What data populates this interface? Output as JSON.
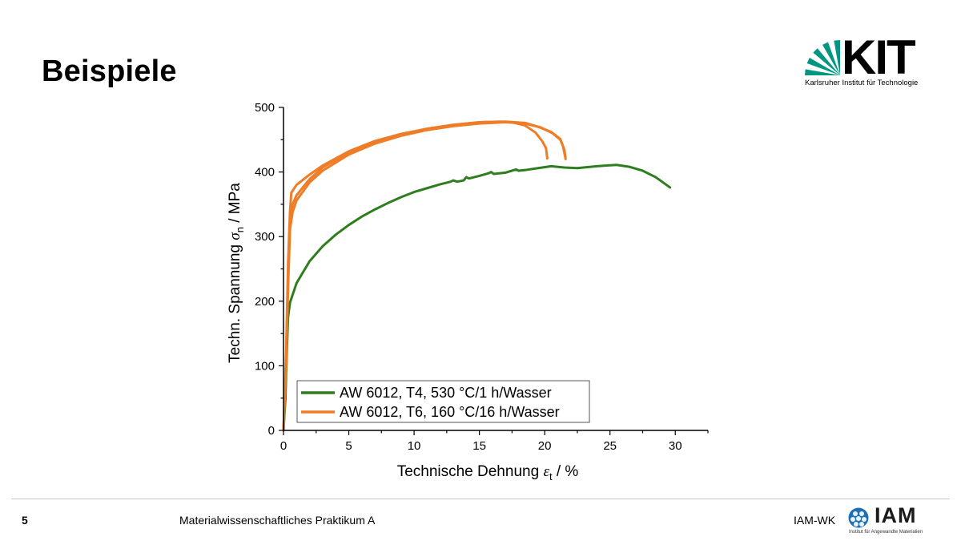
{
  "slide": {
    "title": "Beispiele",
    "page_number": "5",
    "footer_center": "Materialwissenschaftliches Praktikum A",
    "footer_right": "IAM-WK"
  },
  "logos": {
    "kit": {
      "text": "KIT",
      "subtitle": "Karlsruher Institut für Technologie",
      "color": "#009682"
    },
    "iam": {
      "text": "IAM",
      "subtitle": "Institut für Angewandte Materialien",
      "color": "#1f6fb5"
    }
  },
  "chart_data": {
    "type": "line",
    "xlabel": "Technische Dehnung",
    "xlabel_symbol": "ε",
    "xlabel_sub": "t",
    "xlabel_unit": " / %",
    "ylabel": "Techn. Spannung",
    "ylabel_symbol": "σ",
    "ylabel_sub": "n",
    "ylabel_unit": " / MPa",
    "xlim": [
      0,
      32.5
    ],
    "ylim": [
      0,
      500
    ],
    "xticks": [
      0,
      5,
      10,
      15,
      20,
      25,
      30
    ],
    "yticks": [
      0,
      100,
      200,
      300,
      400,
      500
    ],
    "grid": false,
    "legend_position": "bottom-left",
    "series": [
      {
        "name": "AW 6012, T4, 530 °C/1 h/Wasser",
        "color": "#2e7d1e",
        "curves": [
          [
            [
              0,
              0
            ],
            [
              0.15,
              50
            ],
            [
              0.25,
              120
            ],
            [
              0.35,
              175
            ],
            [
              0.5,
              198
            ],
            [
              1,
              228
            ],
            [
              2,
              262
            ],
            [
              3,
              285
            ],
            [
              4,
              303
            ],
            [
              5,
              318
            ],
            [
              6,
              331
            ],
            [
              7,
              342
            ],
            [
              8,
              352
            ],
            [
              9,
              361
            ],
            [
              10,
              369
            ],
            [
              11,
              375
            ],
            [
              12,
              381
            ],
            [
              12.8,
              385
            ],
            [
              13,
              387
            ],
            [
              13.3,
              385
            ],
            [
              13.8,
              387
            ],
            [
              14,
              392
            ],
            [
              14.2,
              390
            ],
            [
              15,
              394
            ],
            [
              15.7,
              398
            ],
            [
              15.9,
              400
            ],
            [
              16.1,
              397
            ],
            [
              17,
              399
            ],
            [
              17.8,
              404
            ],
            [
              18,
              402
            ],
            [
              18.5,
              403
            ],
            [
              19.5,
              406
            ],
            [
              20.5,
              409
            ],
            [
              21.5,
              407
            ],
            [
              22.5,
              406
            ],
            [
              24,
              409
            ],
            [
              25.5,
              411
            ],
            [
              26.5,
              408
            ],
            [
              27.5,
              402
            ],
            [
              28.5,
              392
            ],
            [
              29.6,
              376
            ]
          ]
        ]
      },
      {
        "name": "AW 6012, T6, 160 °C/16 h/Wasser",
        "color": "#ef7d28",
        "curves": [
          [
            [
              0,
              0
            ],
            [
              0.2,
              120
            ],
            [
              0.35,
              260
            ],
            [
              0.5,
              340
            ],
            [
              0.6,
              368
            ],
            [
              1,
              380
            ],
            [
              2,
              396
            ],
            [
              3,
              410
            ],
            [
              5,
              432
            ],
            [
              7,
              448
            ],
            [
              9,
              459
            ],
            [
              11,
              467
            ],
            [
              13,
              473
            ],
            [
              15,
              477
            ],
            [
              16.5,
              478
            ],
            [
              17.5,
              477
            ],
            [
              18.5,
              472
            ],
            [
              19.3,
              461
            ],
            [
              19.8,
              448
            ],
            [
              20.1,
              437
            ],
            [
              20.2,
              421
            ]
          ],
          [
            [
              0,
              0
            ],
            [
              0.2,
              110
            ],
            [
              0.35,
              240
            ],
            [
              0.5,
              325
            ],
            [
              0.7,
              350
            ],
            [
              1,
              364
            ],
            [
              2,
              389
            ],
            [
              3,
              407
            ],
            [
              5,
              430
            ],
            [
              7,
              446
            ],
            [
              9,
              458
            ],
            [
              11,
              467
            ],
            [
              13,
              473
            ],
            [
              15,
              477
            ],
            [
              17,
              478
            ],
            [
              18.5,
              476
            ],
            [
              19.5,
              470
            ],
            [
              20.5,
              462
            ],
            [
              21.2,
              451
            ],
            [
              21.4,
              440
            ],
            [
              21.6,
              420
            ]
          ],
          [
            [
              0,
              0
            ],
            [
              0.2,
              100
            ],
            [
              0.35,
              220
            ],
            [
              0.5,
              312
            ],
            [
              0.7,
              338
            ],
            [
              1,
              356
            ],
            [
              2,
              384
            ],
            [
              3,
              402
            ],
            [
              5,
              427
            ],
            [
              7,
              444
            ],
            [
              9,
              456
            ],
            [
              11,
              465
            ],
            [
              13,
              471
            ],
            [
              15,
              475
            ],
            [
              17,
              477
            ],
            [
              18.5,
              475
            ],
            [
              19.7,
              469
            ],
            [
              20.6,
              460
            ],
            [
              21.2,
              450
            ],
            [
              21.5,
              435
            ],
            [
              21.6,
              422
            ]
          ]
        ]
      }
    ]
  }
}
